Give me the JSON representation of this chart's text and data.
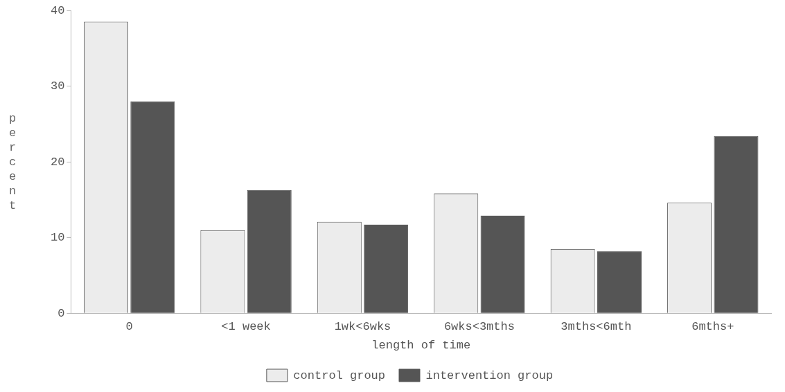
{
  "chart_data": {
    "type": "bar",
    "xlabel": "length of time",
    "ylabel": "percent",
    "categories": [
      "0",
      "<1 week",
      "1wk<6wks",
      "6wks<3mths",
      "3mths<6mth",
      "6mths+"
    ],
    "series": [
      {
        "name": "control group",
        "color": "#ececec",
        "values": [
          38.5,
          11,
          12.1,
          15.8,
          8.5,
          14.6
        ]
      },
      {
        "name": "intervention group",
        "color": "#555555",
        "values": [
          28,
          16.3,
          11.7,
          12.9,
          8.2,
          23.4
        ]
      }
    ],
    "ylim": [
      0,
      40
    ],
    "yticks": [
      0,
      10,
      20,
      30,
      40
    ],
    "grid": false,
    "legend": "bottom"
  }
}
